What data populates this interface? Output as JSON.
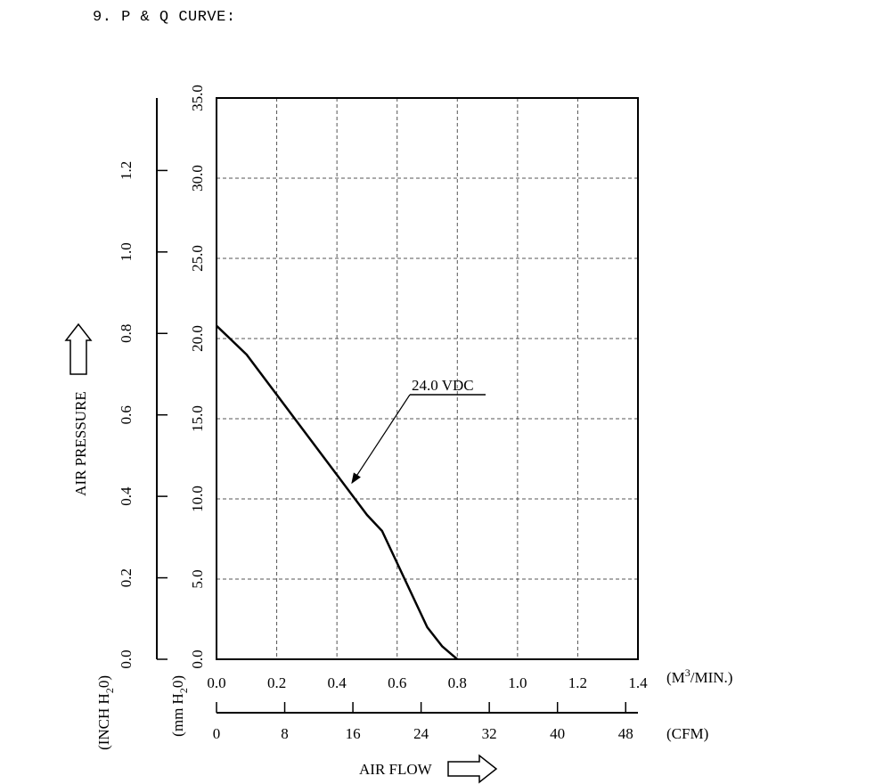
{
  "heading": "9. P & Q CURVE:",
  "chart_data": {
    "type": "line",
    "title": "P & Q CURVE",
    "x_axis_primary": {
      "unit_label": "(M",
      "unit_sup": "3",
      "unit_tail": "/MIN.)",
      "range": [
        0.0,
        1.4
      ],
      "ticks": [
        "0.0",
        "0.2",
        "0.4",
        "0.6",
        "0.8",
        "1.0",
        "1.2",
        "1.4"
      ]
    },
    "x_axis_secondary": {
      "unit_label": "(CFM)",
      "range": [
        0,
        49.44
      ],
      "ticks": [
        "0",
        "8",
        "16",
        "24",
        "32",
        "40",
        "48"
      ]
    },
    "xlabel": "AIR FLOW",
    "y_axis_primary": {
      "unit_label_main": "(mm H",
      "unit_sub": "2",
      "unit_tail": "0)",
      "range": [
        0.0,
        35.0
      ],
      "ticks": [
        "0.0",
        "5.0",
        "10.0",
        "15.0",
        "20.0",
        "25.0",
        "30.0",
        "35.0"
      ]
    },
    "y_axis_secondary": {
      "unit_label_main": "(INCH H",
      "unit_sub": "2",
      "unit_tail": "0)",
      "range": [
        0.0,
        1.378
      ],
      "ticks": [
        "0.0",
        "0.2",
        "0.4",
        "0.6",
        "0.8",
        "1.0",
        "1.2"
      ]
    },
    "ylabel": "AIR PRESSURE",
    "grid": true,
    "series": [
      {
        "name": "24.0 VDC",
        "x": [
          0.0,
          0.1,
          0.2,
          0.3,
          0.4,
          0.5,
          0.55,
          0.6,
          0.65,
          0.7,
          0.75,
          0.8
        ],
        "y": [
          20.8,
          19.0,
          16.5,
          14.0,
          11.5,
          9.0,
          8.0,
          6.0,
          4.0,
          2.0,
          0.8,
          0.0
        ]
      }
    ],
    "annotation": {
      "text": "24.0 VDC",
      "points_to": [
        0.45,
        11.0
      ]
    }
  }
}
